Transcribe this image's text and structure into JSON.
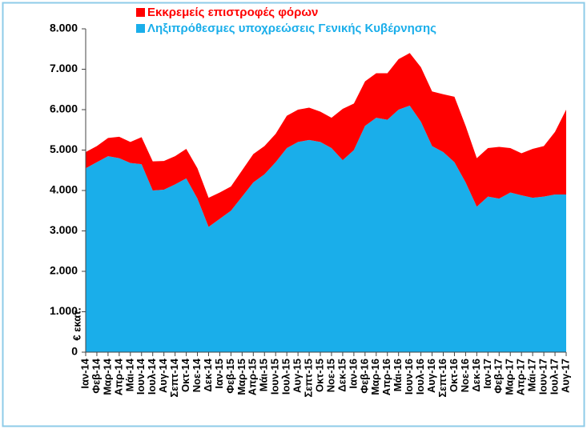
{
  "chart_data": {
    "type": "stacked_area",
    "y_label": "€ εκατ.",
    "categories": [
      "Ιαν-14",
      "Φεβ-14",
      "Μαρ-14",
      "Απρ-14",
      "Μάι-14",
      "Ιουν-14",
      "Ιουλ-14",
      "Αυγ-14",
      "Σεπτ-14",
      "Οκτ-14",
      "Νοε-14",
      "Δεκ-14",
      "Ιαν-15",
      "Φεβ-15",
      "Μαρ-15",
      "Απρ-15",
      "Μάι-15",
      "Ιουν-15",
      "Ιουλ-15",
      "Αυγ-15",
      "Σεπτ-15",
      "Οκτ-15",
      "Νοε-15",
      "Δεκ-15",
      "Ιαν-16",
      "Φεβ-16",
      "Μαρ-16",
      "Απρ-16",
      "Μάι-16",
      "Ιουν-16",
      "Ιουλ-16",
      "Αυγ-16",
      "Σεπτ-16",
      "Οκτ-16",
      "Νοε-16",
      "Δεκ-16",
      "Ιαν-17",
      "Φεβ-17",
      "Μαρ-17",
      "Απρ-17",
      "Μάι-17",
      "Ιουν-17",
      "Ιουλ-17",
      "Αυγ-17"
    ],
    "series": [
      {
        "name": "Ληξιπρόθεσμες υποχρεώσεις Γενικής Κυβέρνησης",
        "color": "#1aaeea",
        "values": [
          4550,
          4700,
          4850,
          4800,
          4680,
          4650,
          4000,
          4020,
          4150,
          4300,
          3800,
          3100,
          3300,
          3500,
          3850,
          4200,
          4400,
          4700,
          5050,
          5200,
          5250,
          5200,
          5050,
          4750,
          5000,
          5600,
          5800,
          5750,
          6000,
          6100,
          5700,
          5100,
          4950,
          4700,
          4200,
          3600,
          3850,
          3800,
          3950,
          3880,
          3820,
          3850,
          3900,
          3900
        ]
      },
      {
        "name": "Εκκρεμείς επιστροφές φόρων",
        "color": "#ff0000",
        "values": [
          400,
          400,
          450,
          530,
          520,
          670,
          720,
          710,
          700,
          730,
          750,
          720,
          650,
          600,
          650,
          700,
          700,
          700,
          800,
          800,
          800,
          750,
          750,
          1270,
          1150,
          1100,
          1100,
          1150,
          1250,
          1300,
          1350,
          1350,
          1430,
          1620,
          1400,
          1200,
          1200,
          1280,
          1100,
          1040,
          1210,
          1250,
          1550,
          2100
        ]
      }
    ],
    "ylim": [
      0,
      8000
    ],
    "yticks": [
      0,
      {
        "value": 1000,
        "label": "1.000"
      },
      {
        "value": 2000,
        "label": "2.000"
      },
      {
        "value": 3000,
        "label": "3.000"
      },
      {
        "value": 4000,
        "label": "4.000"
      },
      {
        "value": 5000,
        "label": "5.000"
      },
      {
        "value": 6000,
        "label": "6.000"
      },
      {
        "value": 7000,
        "label": "7.000"
      },
      {
        "value": 8000,
        "label": "8.000"
      }
    ],
    "grid": false
  }
}
